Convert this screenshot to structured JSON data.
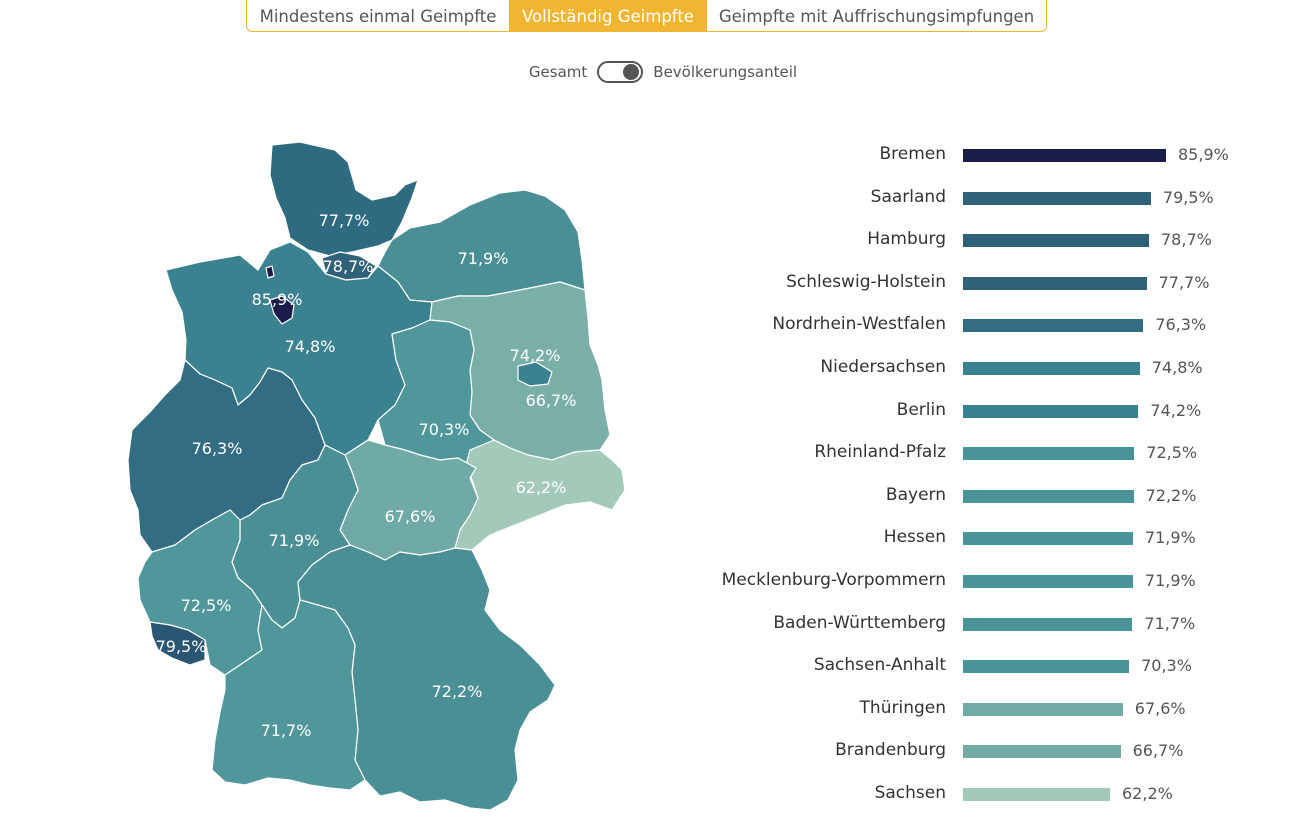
{
  "tabs": [
    {
      "label": "Mindestens einmal Geimpfte",
      "active": false
    },
    {
      "label": "Vollständig Geimpfte",
      "active": true
    },
    {
      "label": "Geimpfte mit Auffrischungsimpfungen",
      "active": false
    }
  ],
  "toggle": {
    "left_label": "Gesamt",
    "right_label": "Bevölkerungsanteil",
    "state": "Bevölkerungsanteil"
  },
  "colors": {
    "accent": "#f2b531",
    "darkest": "#1c1c4a",
    "dark": "#2f5f77",
    "mid": "#4a8f96",
    "light": "#7aafa8",
    "lightest": "#a3c9b8"
  },
  "chart_data": {
    "type": "bar",
    "orientation": "horizontal",
    "categories": [
      "Bremen",
      "Saarland",
      "Hamburg",
      "Schleswig-Holstein",
      "Nordrhein-Westfalen",
      "Niedersachsen",
      "Berlin",
      "Rheinland-Pfalz",
      "Bayern",
      "Hessen",
      "Mecklenburg-Vorpommern",
      "Baden-Württemberg",
      "Sachsen-Anhalt",
      "Thüringen",
      "Brandenburg",
      "Sachsen"
    ],
    "values": [
      85.9,
      79.5,
      78.7,
      77.7,
      76.3,
      74.8,
      74.2,
      72.5,
      72.2,
      71.9,
      71.9,
      71.7,
      70.3,
      67.6,
      66.7,
      62.2
    ],
    "value_labels": [
      "85,9%",
      "79,5%",
      "78,7%",
      "77,7%",
      "76,3%",
      "74,8%",
      "74,2%",
      "72,5%",
      "72,2%",
      "71,9%",
      "71,9%",
      "71,7%",
      "70,3%",
      "67,6%",
      "66,7%",
      "62,2%"
    ],
    "unit": "%"
  },
  "map": {
    "type": "choropleth",
    "states": [
      {
        "name": "Schleswig-Holstein",
        "label": "77,7%"
      },
      {
        "name": "Hamburg",
        "label": "78,7%"
      },
      {
        "name": "Mecklenburg-Vorpommern",
        "label": "71,9%"
      },
      {
        "name": "Bremen",
        "label": "85,9%"
      },
      {
        "name": "Niedersachsen",
        "label": "74,8%"
      },
      {
        "name": "Berlin",
        "label": "74,2%"
      },
      {
        "name": "Brandenburg",
        "label": "66,7%"
      },
      {
        "name": "Sachsen-Anhalt",
        "label": "70,3%"
      },
      {
        "name": "Nordrhein-Westfalen",
        "label": "76,3%"
      },
      {
        "name": "Sachsen",
        "label": "62,2%"
      },
      {
        "name": "Thüringen",
        "label": "67,6%"
      },
      {
        "name": "Hessen",
        "label": "71,9%"
      },
      {
        "name": "Rheinland-Pfalz",
        "label": "72,5%"
      },
      {
        "name": "Saarland",
        "label": "79,5%"
      },
      {
        "name": "Bayern",
        "label": "72,2%"
      },
      {
        "name": "Baden-Württemberg",
        "label": "71,7%"
      }
    ]
  }
}
